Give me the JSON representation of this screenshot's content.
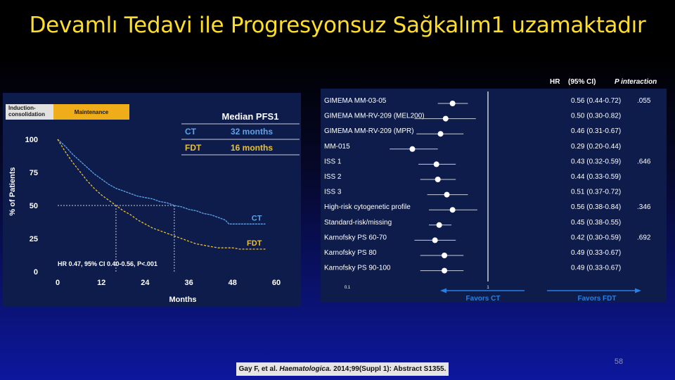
{
  "slide": {
    "title": "Devamlı Tedavi ile Progresyonsuz Sağkalım1 uzamaktadır",
    "page_number": "58"
  },
  "citation": {
    "authors": "Gay F, et al.",
    "journal": "Haematologica.",
    "rest": "2014;99(Suppl 1): Abstract S1355."
  },
  "colors": {
    "ct": "#5ea3e8",
    "fdt": "#e8c234",
    "highlight": "#ffde2a",
    "phase_induction": "#e1e1e1",
    "phase_maintenance": "#f0ad1a",
    "point": "#ffffff",
    "favors": "#2b7fe0"
  },
  "chart_data": [
    {
      "type": "line",
      "phase_bar": {
        "induction": "Induction-\nconsolidation",
        "maintenance": "Maintenance"
      },
      "median_table": {
        "header": "Median PFS1",
        "rows": [
          {
            "arm": "CT",
            "value": "32 months"
          },
          {
            "arm": "FDT",
            "value": "16 months"
          }
        ]
      },
      "ylabel": "% of Patients",
      "xlabel": "Months",
      "x_ticks": [
        0,
        12,
        24,
        36,
        48,
        60
      ],
      "y_ticks": [
        0,
        25,
        50,
        75,
        100
      ],
      "xlim": [
        0,
        60
      ],
      "ylim": [
        0,
        100
      ],
      "grid": false,
      "median_reference": {
        "y": 50,
        "x": [
          16,
          32
        ]
      },
      "annotation": "HR 0.47, 95% CI 0.40-0.56, P<.001",
      "series": [
        {
          "name": "CT",
          "x": [
            0,
            2,
            4,
            6,
            8,
            10,
            12,
            14,
            16,
            18,
            20,
            22,
            24,
            26,
            28,
            30,
            32,
            34,
            36,
            38,
            40,
            42,
            44,
            46,
            47,
            52,
            54,
            57
          ],
          "y": [
            100,
            95,
            89,
            84,
            79,
            74,
            70,
            66,
            63,
            61,
            59,
            57,
            56,
            55,
            53,
            52,
            50,
            49,
            47,
            46,
            44,
            43,
            41,
            39,
            36,
            36,
            36,
            36
          ]
        },
        {
          "name": "FDT",
          "x": [
            0,
            2,
            4,
            6,
            8,
            10,
            12,
            14,
            16,
            18,
            20,
            22,
            24,
            26,
            28,
            30,
            32,
            34,
            36,
            38,
            40,
            42,
            44,
            46,
            48,
            50,
            52,
            54,
            57
          ],
          "y": [
            100,
            91,
            83,
            76,
            69,
            63,
            58,
            54,
            50,
            46,
            43,
            39,
            36,
            33,
            31,
            29,
            27,
            25,
            23,
            21,
            20,
            19,
            18,
            18,
            18,
            17,
            17,
            17,
            17
          ]
        }
      ]
    },
    {
      "type": "forest",
      "header": {
        "hr": "HR",
        "ci": "(95% CI)",
        "p": "P interaction"
      },
      "scale": "log",
      "xlim": [
        0.1,
        10
      ],
      "x_ticks": [
        0.1,
        1
      ],
      "reference_line": 1,
      "favors_left": "Favors CT",
      "favors_right": "Favors FDT",
      "rows": [
        {
          "label": "GIMEMA MM-03-05",
          "hr": 0.56,
          "lo": 0.44,
          "hi": 0.72,
          "text": "0.56 (0.44-0.72)",
          "p": ".055"
        },
        {
          "label": "GIMEMA MM-RV-209 (MEL200)",
          "hr": 0.5,
          "lo": 0.3,
          "hi": 0.82,
          "text": "0.50 (0.30-0.82)",
          "p": ""
        },
        {
          "label": "GIMEMA MM-RV-209 (MPR)",
          "hr": 0.46,
          "lo": 0.31,
          "hi": 0.67,
          "text": "0.46 (0.31-0.67)",
          "p": ""
        },
        {
          "label": "MM-015",
          "hr": 0.29,
          "lo": 0.2,
          "hi": 0.44,
          "text": "0.29 (0.20-0.44)",
          "p": ""
        },
        {
          "label": "ISS 1",
          "hr": 0.43,
          "lo": 0.32,
          "hi": 0.59,
          "text": "0.43 (0.32-0.59)",
          "p": ".646"
        },
        {
          "label": "ISS 2",
          "hr": 0.44,
          "lo": 0.33,
          "hi": 0.59,
          "text": "0.44 (0.33-0.59)",
          "p": ""
        },
        {
          "label": "ISS 3",
          "hr": 0.51,
          "lo": 0.37,
          "hi": 0.72,
          "text": "0.51 (0.37-0.72)",
          "p": ""
        },
        {
          "label": "High-risk cytogenetic profile",
          "hr": 0.56,
          "lo": 0.38,
          "hi": 0.84,
          "text": "0.56 (0.38-0.84)",
          "p": ".346"
        },
        {
          "label": "Standard-risk/missing",
          "hr": 0.45,
          "lo": 0.38,
          "hi": 0.55,
          "text": "0.45 (0.38-0.55)",
          "p": ""
        },
        {
          "label": "Karnofsky PS 60-70",
          "hr": 0.42,
          "lo": 0.3,
          "hi": 0.59,
          "text": "0.42 (0.30-0.59)",
          "p": ".692"
        },
        {
          "label": "Karnofsky PS 80",
          "hr": 0.49,
          "lo": 0.33,
          "hi": 0.67,
          "text": "0.49 (0.33-0.67)",
          "p": ""
        },
        {
          "label": "Karnofsky PS 90-100",
          "hr": 0.49,
          "lo": 0.33,
          "hi": 0.67,
          "text": "0.49 (0.33-0.67)",
          "p": ""
        }
      ]
    }
  ]
}
